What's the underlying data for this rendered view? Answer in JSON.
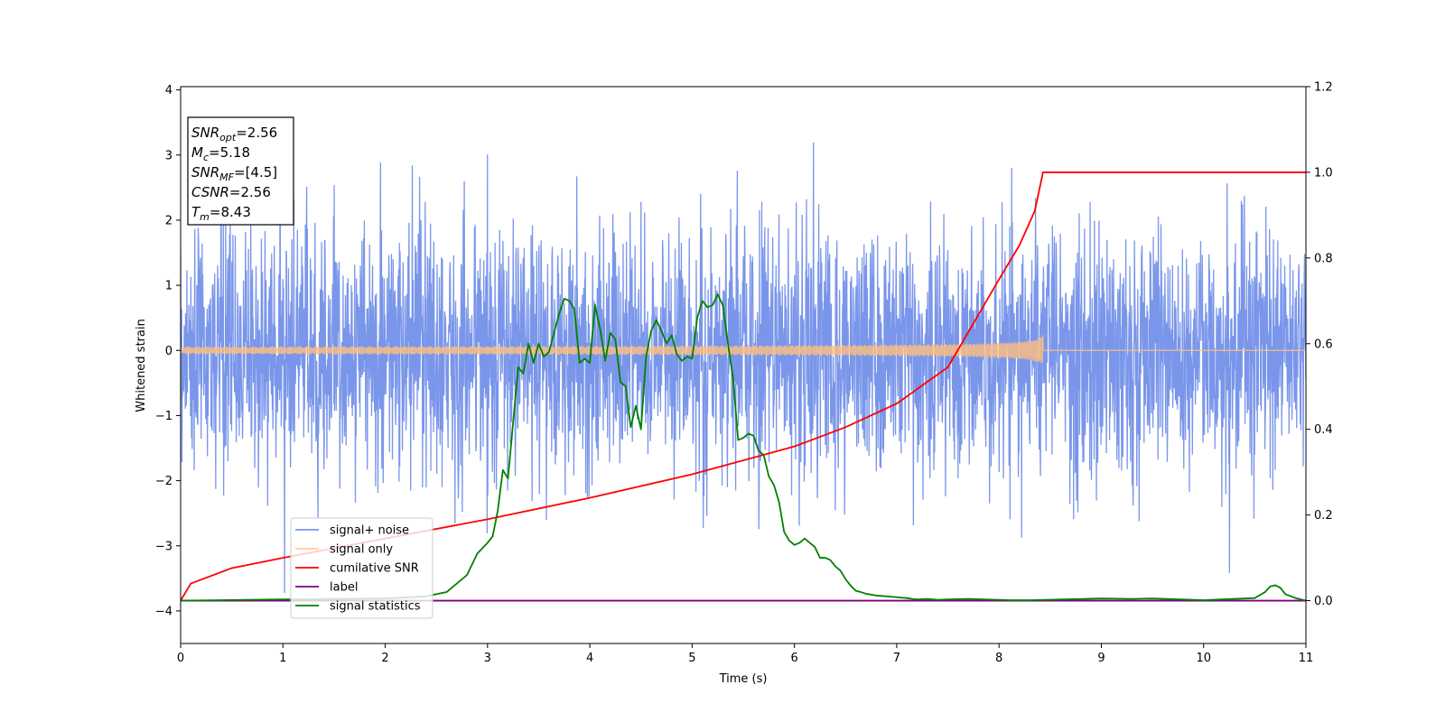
{
  "chart_data": {
    "type": "line",
    "title": "",
    "xlabel": "Time (s)",
    "ylabel": "Whitened strain",
    "y2label": "",
    "xlim": [
      0,
      11
    ],
    "ylim": [
      -4.5,
      4.05
    ],
    "y2lim": [
      -0.1,
      1.2
    ],
    "xticks": [
      "0",
      "1",
      "2",
      "3",
      "4",
      "5",
      "6",
      "7",
      "8",
      "9",
      "10",
      "11"
    ],
    "yticks": [
      "−4",
      "−3",
      "−2",
      "−1",
      "0",
      "1",
      "2",
      "3",
      "4"
    ],
    "y2ticks": [
      "0.0",
      "0.2",
      "0.4",
      "0.6",
      "0.8",
      "1.0",
      "1.2"
    ],
    "grid": false,
    "legend_position": "lower-left",
    "info_box": [
      {
        "sym": "SNR",
        "sub": "opt",
        "rest": "=2.56"
      },
      {
        "sym": "M",
        "sub": "c",
        "rest": "=5.18"
      },
      {
        "sym": "SNR",
        "sub": "MF",
        "rest": "=[4.5]"
      },
      {
        "sym": "CSNR",
        "sub": "",
        "rest": "=2.56"
      },
      {
        "sym": "T",
        "sub": "m",
        "rest": "=8.43"
      }
    ],
    "series": [
      {
        "name": "signal+ noise",
        "color": "#4169e1",
        "axis": "left",
        "kind": "noise",
        "x_range": [
          0,
          11
        ],
        "std": 0.95,
        "y_range": [
          -4.15,
          3.65
        ]
      },
      {
        "name": "signal only",
        "color": "#ffbf80",
        "axis": "left",
        "kind": "chirp",
        "x_range": [
          0,
          11
        ],
        "merger_time": 8.43,
        "peak_amplitude": 0.25
      },
      {
        "name": "cumilative SNR",
        "color": "#ff0000",
        "axis": "right",
        "x": [
          0,
          0.1,
          0.5,
          1,
          2,
          3,
          4,
          5,
          6,
          6.5,
          7,
          7.5,
          8,
          8.2,
          8.35,
          8.43,
          11
        ],
        "values": [
          0.0,
          0.04,
          0.076,
          0.1,
          0.145,
          0.19,
          0.24,
          0.295,
          0.36,
          0.405,
          0.46,
          0.545,
          0.75,
          0.83,
          0.91,
          1.0,
          1.0
        ]
      },
      {
        "name": "label",
        "color": "#800080",
        "axis": "right",
        "x": [
          0,
          11
        ],
        "values": [
          0.0,
          0.0
        ]
      },
      {
        "name": "signal statistics",
        "color": "#008000",
        "axis": "right",
        "x": [
          0,
          1,
          2,
          2.4,
          2.6,
          2.7,
          2.8,
          2.9,
          3.0,
          3.05,
          3.1,
          3.15,
          3.2,
          3.3,
          3.35,
          3.4,
          3.45,
          3.5,
          3.55,
          3.6,
          3.7,
          3.75,
          3.8,
          3.85,
          3.9,
          3.95,
          4.0,
          4.05,
          4.1,
          4.15,
          4.2,
          4.25,
          4.3,
          4.35,
          4.4,
          4.45,
          4.5,
          4.55,
          4.6,
          4.65,
          4.7,
          4.75,
          4.8,
          4.85,
          4.9,
          4.95,
          5.0,
          5.05,
          5.1,
          5.15,
          5.2,
          5.25,
          5.3,
          5.35,
          5.4,
          5.45,
          5.5,
          5.55,
          5.6,
          5.65,
          5.7,
          5.75,
          5.8,
          5.85,
          5.9,
          5.95,
          6.0,
          6.05,
          6.1,
          6.15,
          6.2,
          6.25,
          6.3,
          6.35,
          6.4,
          6.45,
          6.5,
          6.55,
          6.6,
          6.65,
          6.7,
          6.75,
          6.8,
          6.85,
          6.9,
          6.95,
          7.0,
          7.05,
          7.1,
          7.15,
          7.2,
          7.3,
          7.4,
          7.5,
          7.7,
          8.0,
          8.1,
          8.3,
          9.0,
          9.3,
          9.5,
          10.0,
          10.5,
          10.6,
          10.65,
          10.7,
          10.75,
          10.8,
          10.9,
          11.0
        ],
        "values": [
          0.0,
          0.003,
          0.005,
          0.01,
          0.02,
          0.04,
          0.06,
          0.11,
          0.135,
          0.15,
          0.21,
          0.305,
          0.285,
          0.545,
          0.53,
          0.6,
          0.555,
          0.6,
          0.57,
          0.58,
          0.67,
          0.705,
          0.7,
          0.68,
          0.555,
          0.565,
          0.555,
          0.69,
          0.635,
          0.56,
          0.625,
          0.61,
          0.51,
          0.5,
          0.405,
          0.455,
          0.4,
          0.57,
          0.63,
          0.655,
          0.63,
          0.6,
          0.62,
          0.575,
          0.56,
          0.57,
          0.565,
          0.66,
          0.7,
          0.685,
          0.69,
          0.715,
          0.69,
          0.6,
          0.52,
          0.375,
          0.38,
          0.39,
          0.385,
          0.35,
          0.34,
          0.29,
          0.27,
          0.23,
          0.16,
          0.14,
          0.13,
          0.135,
          0.145,
          0.135,
          0.125,
          0.1,
          0.1,
          0.095,
          0.08,
          0.07,
          0.05,
          0.035,
          0.023,
          0.02,
          0.016,
          0.014,
          0.012,
          0.011,
          0.01,
          0.009,
          0.008,
          0.007,
          0.006,
          0.004,
          0.003,
          0.004,
          0.002,
          0.003,
          0.004,
          0.002,
          0.001,
          0.001,
          0.005,
          0.004,
          0.005,
          0.001,
          0.006,
          0.02,
          0.033,
          0.036,
          0.03,
          0.015,
          0.006,
          0.0
        ]
      }
    ]
  }
}
